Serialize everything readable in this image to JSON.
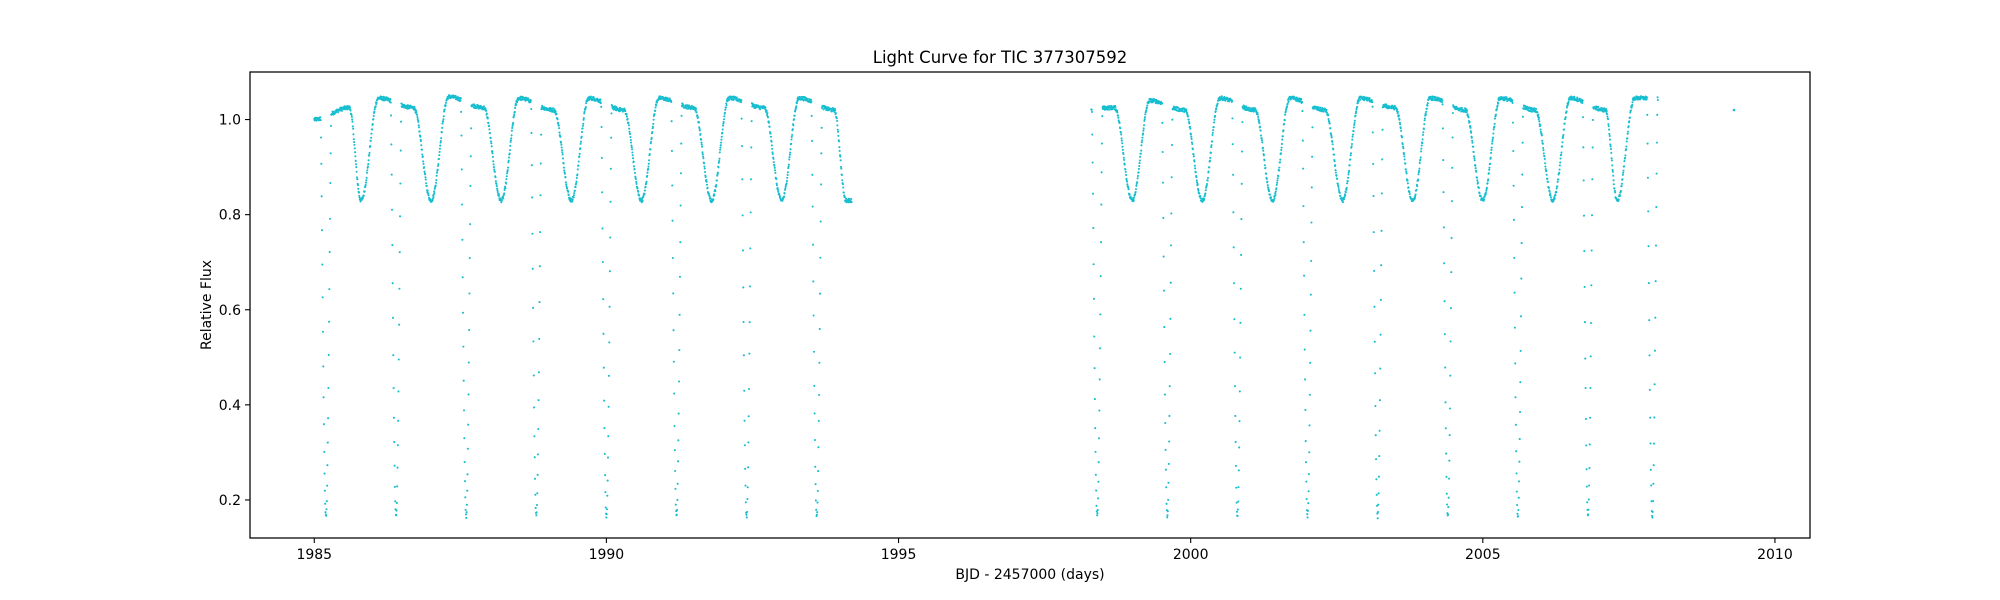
{
  "chart_data": {
    "type": "scatter",
    "title": "Light Curve for TIC 377307592",
    "xlabel": "BJD - 2457000 (days)",
    "ylabel": "Relative Flux",
    "xlim": [
      1983.9,
      2010.6
    ],
    "ylim": [
      0.12,
      1.1
    ],
    "xticks": [
      1985,
      1990,
      1995,
      2000,
      2005,
      2010
    ],
    "yticks": [
      0.2,
      0.4,
      0.6,
      0.8,
      1.0
    ],
    "grid": false,
    "legend": "none",
    "marker_color": "#17becf",
    "marker": "point",
    "series": [
      {
        "segments": [
          {
            "start": 1985.0,
            "end": 1994.2
          },
          {
            "start": 1998.3,
            "end": 2008.0
          }
        ],
        "primary_eclipses": [
          1985.2,
          1986.4,
          1987.6,
          1988.8,
          1990.0,
          1991.2,
          1992.4,
          1993.6,
          1998.4,
          1999.6,
          2000.8,
          2002.0,
          2003.2,
          2004.4,
          2005.6,
          2006.8,
          2007.9
        ],
        "primary_depth": 0.165,
        "secondary_eclipses": [
          1985.8,
          1987.0,
          1988.2,
          1989.4,
          1990.6,
          1991.8,
          1993.0,
          1994.1,
          1999.0,
          2000.2,
          2001.4,
          2002.6,
          2003.8,
          2005.0,
          2006.2,
          2007.3
        ],
        "secondary_depth": 0.83,
        "maxima": [
          [
            1985.0,
            1.0
          ],
          [
            1985.6,
            1.025
          ],
          [
            1986.1,
            1.045
          ],
          [
            1986.7,
            1.025
          ],
          [
            1987.3,
            1.048
          ],
          [
            1987.9,
            1.025
          ],
          [
            1988.5,
            1.045
          ],
          [
            1989.1,
            1.02
          ],
          [
            1989.7,
            1.045
          ],
          [
            1990.3,
            1.02
          ],
          [
            1990.9,
            1.045
          ],
          [
            1991.5,
            1.025
          ],
          [
            1992.1,
            1.045
          ],
          [
            1992.7,
            1.025
          ],
          [
            1993.3,
            1.045
          ],
          [
            1993.9,
            1.02
          ],
          [
            1998.7,
            1.025
          ],
          [
            1999.3,
            1.04
          ],
          [
            1999.9,
            1.02
          ],
          [
            2000.5,
            1.045
          ],
          [
            2001.1,
            1.02
          ],
          [
            2001.7,
            1.045
          ],
          [
            2002.3,
            1.02
          ],
          [
            2002.9,
            1.045
          ],
          [
            2003.5,
            1.025
          ],
          [
            2004.1,
            1.045
          ],
          [
            2004.7,
            1.02
          ],
          [
            2005.3,
            1.045
          ],
          [
            2005.9,
            1.02
          ],
          [
            2006.5,
            1.045
          ],
          [
            2007.1,
            1.02
          ],
          [
            2007.6,
            1.045
          ]
        ],
        "outliers": [
          [
            2009.3,
            1.02
          ]
        ]
      }
    ]
  }
}
